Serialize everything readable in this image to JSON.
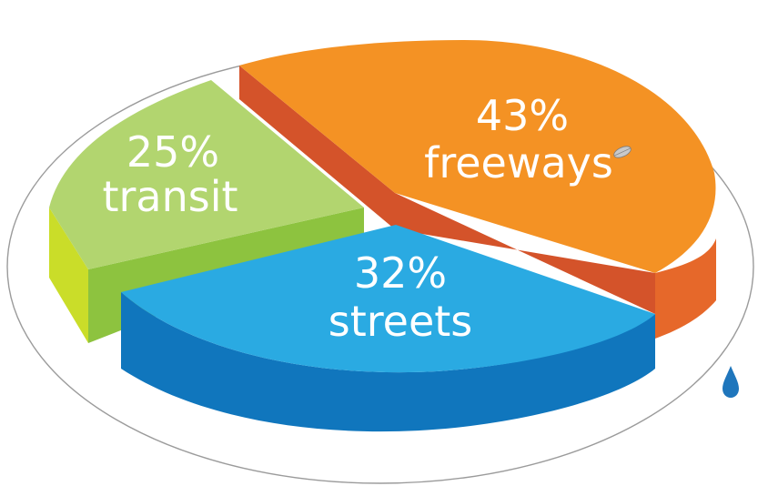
{
  "chart_data": {
    "type": "pie",
    "title": "",
    "slices": [
      {
        "label": "transit",
        "percent_label": "25%",
        "value": 25,
        "color": "#b2d56f"
      },
      {
        "label": "freeways",
        "percent_label": "43%",
        "value": 43,
        "color": "#f49224"
      },
      {
        "label": "streets",
        "percent_label": "32%",
        "value": 32,
        "color": "#2aaae2"
      }
    ]
  },
  "colors": {
    "transit_top": "#b2d56f",
    "transit_side": "#8dc33f",
    "transit_edge": "#cadd29",
    "freeways_top": "#f49224",
    "freeways_side": "#e6682a",
    "freeways_inner": "#d4532a",
    "streets_top": "#2aaae2",
    "streets_side": "#1076bd",
    "outline": "#9b9b9b"
  },
  "icons": {
    "leaf": "leaf-icon",
    "drop": "water-drop-icon"
  }
}
